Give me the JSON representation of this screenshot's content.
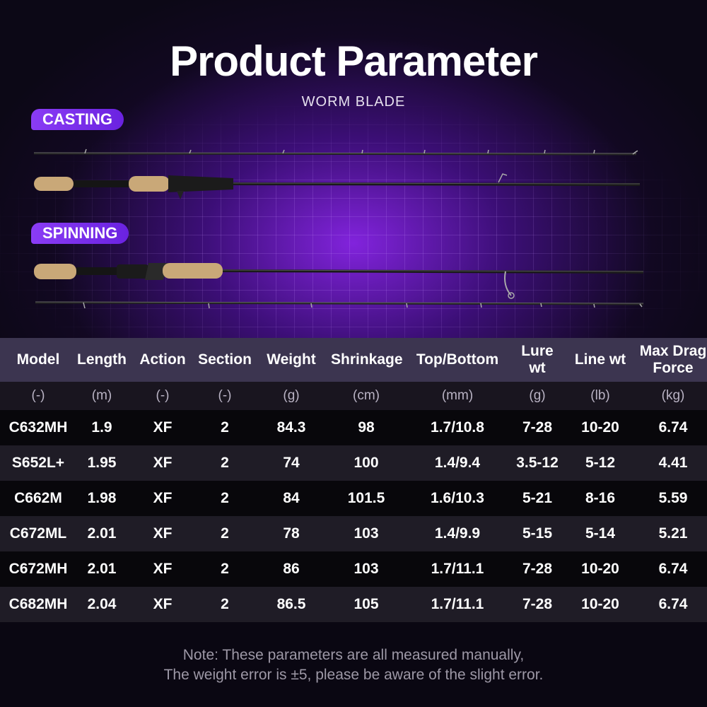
{
  "title": "Product Parameter",
  "subtitle": "WORM BLADE",
  "tags": {
    "casting": "CASTING",
    "spinning": "SPINNING"
  },
  "table": {
    "headers": [
      "Model",
      "Length",
      "Action",
      "Section",
      "Weight",
      "Shrinkage",
      "Top/Bottom",
      "Lure wt",
      "Line wt",
      "Max Drag Force"
    ],
    "units": [
      "(-)",
      "(m)",
      "(-)",
      "(-)",
      "(g)",
      "(cm)",
      "(mm)",
      "(g)",
      "(lb)",
      "(kg)"
    ],
    "rows": [
      [
        "C632MH",
        "1.9",
        "XF",
        "2",
        "84.3",
        "98",
        "1.7/10.8",
        "7-28",
        "10-20",
        "6.74"
      ],
      [
        "S652L+",
        "1.95",
        "XF",
        "2",
        "74",
        "100",
        "1.4/9.4",
        "3.5-12",
        "5-12",
        "4.41"
      ],
      [
        "C662M",
        "1.98",
        "XF",
        "2",
        "84",
        "101.5",
        "1.6/10.3",
        "5-21",
        "8-16",
        "5.59"
      ],
      [
        "C672ML",
        "2.01",
        "XF",
        "2",
        "78",
        "103",
        "1.4/9.9",
        "5-15",
        "5-14",
        "5.21"
      ],
      [
        "C672MH",
        "2.01",
        "XF",
        "2",
        "86",
        "103",
        "1.7/11.1",
        "7-28",
        "10-20",
        "6.74"
      ],
      [
        "C682MH",
        "2.04",
        "XF",
        "2",
        "86.5",
        "105",
        "1.7/11.1",
        "7-28",
        "10-20",
        "6.74"
      ]
    ]
  },
  "note": {
    "line1": "Note: These parameters are all measured manually,",
    "line2": "The weight error is ±5, please be aware of the slight error."
  },
  "colors": {
    "accent": "#7b2ff0",
    "header_bg": "#3c3550",
    "row_alt": "#1f1c26"
  }
}
